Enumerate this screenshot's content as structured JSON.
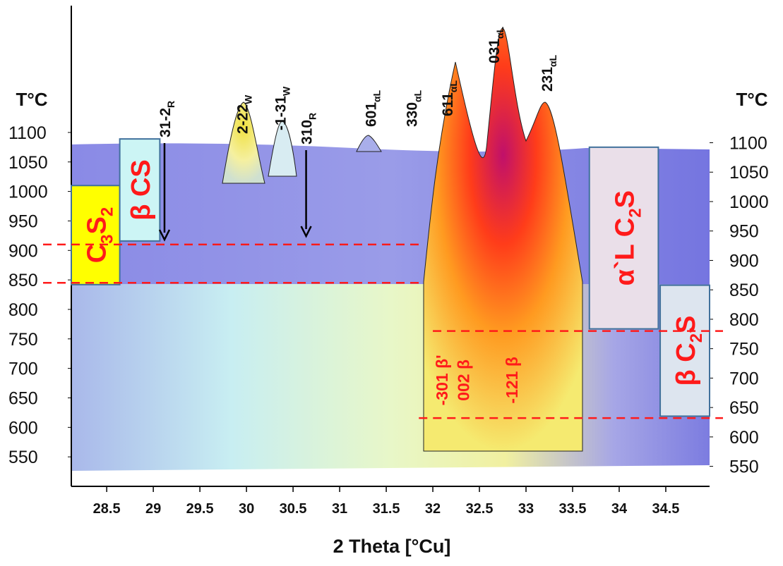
{
  "chart_data": {
    "type": "contour",
    "xlabel": "2 Theta [°Cu]",
    "ylabel": "T°C",
    "y2label": "T°C",
    "xlim": [
      28.12,
      34.97
    ],
    "xticks": [
      28.5,
      29,
      29.5,
      30,
      30.5,
      31,
      31.5,
      32,
      32.5,
      33,
      33.5,
      34,
      34.5
    ],
    "ylim": [
      500,
      1315
    ],
    "yticks": [
      550,
      600,
      650,
      700,
      750,
      800,
      850,
      900,
      950,
      1000,
      1050,
      1100
    ],
    "y2lim": [
      516,
      1333
    ],
    "y2ticks": [
      550,
      600,
      650,
      700,
      750,
      800,
      850,
      900,
      950,
      1000,
      1050,
      1100
    ],
    "peaks": [
      {
        "x": 29.12,
        "label": "31-2",
        "sub": "R"
      },
      {
        "x": 29.95,
        "label": "2-22",
        "sub": "W"
      },
      {
        "x": 30.36,
        "label": "-1-31",
        "sub": "W"
      },
      {
        "x": 30.64,
        "label": "310",
        "sub": "R"
      },
      {
        "x": 31.33,
        "label": "601",
        "sub": "αL"
      },
      {
        "x": 31.77,
        "label": "330",
        "sub": "αL"
      },
      {
        "x": 32.15,
        "label": "611",
        "sub": "αL"
      },
      {
        "x": 32.65,
        "label": "031",
        "sub": "αL"
      },
      {
        "x": 33.22,
        "label": "231",
        "sub": "αL"
      }
    ],
    "beta_peaks": [
      {
        "x": 32.1,
        "label": "-301 β'"
      },
      {
        "x": 32.33,
        "label": "002 β"
      },
      {
        "x": 32.85,
        "label": "-121 β"
      }
    ],
    "beta_label_temperature": 680,
    "phases": [
      {
        "parts": [
          "C",
          "3",
          "S",
          "2"
        ],
        "x": [
          28.12,
          28.64
        ],
        "t": [
          842,
          1010
        ],
        "fill": "#ffff00"
      },
      {
        "parts": [
          "β CS"
        ],
        "x": [
          28.64,
          29.07
        ],
        "t": [
          916,
          1089
        ],
        "fill": "#ccf5f5"
      },
      {
        "parts": [
          "α`L C",
          "2",
          "S"
        ],
        "x": [
          33.68,
          34.42
        ],
        "t": [
          767,
          1075
        ],
        "fill": "#eadfe9"
      },
      {
        "parts": [
          "β C",
          "2",
          "S"
        ],
        "x": [
          34.44,
          34.97
        ],
        "t": [
          619,
          841
        ],
        "fill": "#dde5ef"
      }
    ],
    "transitions": [
      {
        "t": 910,
        "x": [
          28.12,
          31.85
        ],
        "axis": "y"
      },
      {
        "t": 845,
        "x": [
          28.12,
          31.85
        ],
        "axis": "y"
      },
      {
        "t": 780,
        "x": [
          32.0,
          35.2
        ],
        "axis": "y2"
      },
      {
        "t": 632,
        "x": [
          31.85,
          35.2
        ],
        "axis": "y2"
      }
    ],
    "color": "#ff1a1a"
  }
}
